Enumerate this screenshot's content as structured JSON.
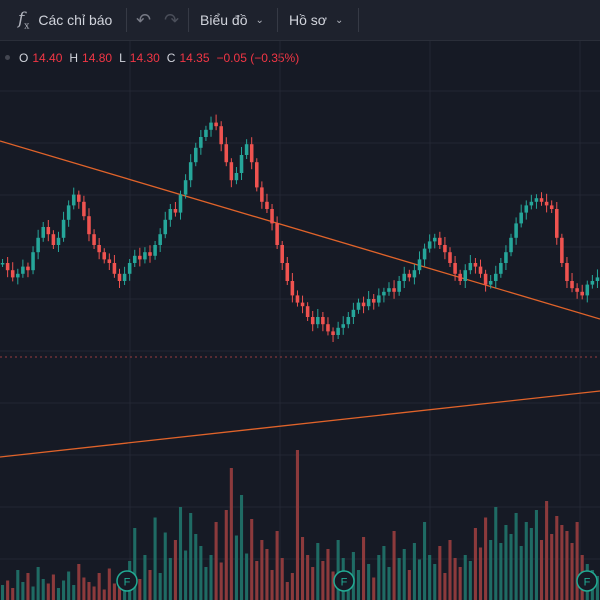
{
  "toolbar": {
    "indicators_label": "Các chỉ báo",
    "chart_menu_label": "Biểu đồ",
    "profile_menu_label": "Hồ sơ"
  },
  "ohlc": {
    "open_key": "O",
    "open": "14.40",
    "high_key": "H",
    "high": "14.80",
    "low_key": "L",
    "low": "14.30",
    "close_key": "C",
    "close": "14.35",
    "change": "−0.05 (−0.35%)"
  },
  "colors": {
    "background": "#161a25",
    "up": "#26a69a",
    "down": "#ef5350",
    "trendline": "#e0632a",
    "price_line": "#ef5350",
    "event_marker": "#22ab94"
  },
  "chart_data": {
    "type": "candlestick",
    "grid": true,
    "trendlines": 2,
    "price_line": "dashed",
    "event_marker_label": "F",
    "event_marker_count": 3,
    "series": [
      {
        "name": "price",
        "values": [
          0.55,
          0.53,
          0.51,
          0.52,
          0.54,
          0.53,
          0.58,
          0.62,
          0.65,
          0.63,
          0.6,
          0.62,
          0.67,
          0.71,
          0.74,
          0.72,
          0.68,
          0.63,
          0.6,
          0.58,
          0.56,
          0.55,
          0.52,
          0.5,
          0.52,
          0.55,
          0.57,
          0.56,
          0.58,
          0.57,
          0.6,
          0.63,
          0.67,
          0.7,
          0.69,
          0.74,
          0.78,
          0.83,
          0.87,
          0.9,
          0.92,
          0.94,
          0.93,
          0.88,
          0.83,
          0.78,
          0.8,
          0.85,
          0.88,
          0.83,
          0.76,
          0.72,
          0.7,
          0.66,
          0.6,
          0.55,
          0.5,
          0.46,
          0.44,
          0.43,
          0.4,
          0.38,
          0.4,
          0.38,
          0.36,
          0.35,
          0.37,
          0.38,
          0.4,
          0.42,
          0.44,
          0.43,
          0.45,
          0.44,
          0.46,
          0.47,
          0.48,
          0.47,
          0.5,
          0.52,
          0.51,
          0.53,
          0.56,
          0.59,
          0.61,
          0.62,
          0.6,
          0.58,
          0.55,
          0.52,
          0.5,
          0.53,
          0.55,
          0.54,
          0.52,
          0.49,
          0.5,
          0.52,
          0.55,
          0.58,
          0.62,
          0.66,
          0.69,
          0.71,
          0.72,
          0.73,
          0.72,
          0.71,
          0.7,
          0.62,
          0.55,
          0.5,
          0.48,
          0.47,
          0.46,
          0.49,
          0.5,
          0.51
        ]
      },
      {
        "name": "volume",
        "values": [
          0.1,
          0.13,
          0.08,
          0.2,
          0.12,
          0.18,
          0.09,
          0.22,
          0.14,
          0.11,
          0.17,
          0.08,
          0.13,
          0.19,
          0.1,
          0.24,
          0.15,
          0.12,
          0.09,
          0.18,
          0.07,
          0.21,
          0.11,
          0.16,
          0.13,
          0.26,
          0.48,
          0.14,
          0.3,
          0.2,
          0.55,
          0.18,
          0.45,
          0.28,
          0.4,
          0.62,
          0.33,
          0.58,
          0.44,
          0.36,
          0.22,
          0.3,
          0.52,
          0.25,
          0.6,
          0.88,
          0.43,
          0.7,
          0.31,
          0.54,
          0.26,
          0.4,
          0.34,
          0.2,
          0.46,
          0.28,
          0.12,
          0.18,
          1.0,
          0.42,
          0.3,
          0.22,
          0.38,
          0.26,
          0.34,
          0.19,
          0.4,
          0.28,
          0.16,
          0.32,
          0.2,
          0.42,
          0.24,
          0.15,
          0.3,
          0.36,
          0.22,
          0.46,
          0.28,
          0.34,
          0.2,
          0.38,
          0.27,
          0.52,
          0.3,
          0.24,
          0.36,
          0.18,
          0.4,
          0.28,
          0.22,
          0.3,
          0.26,
          0.48,
          0.35,
          0.55,
          0.4,
          0.62,
          0.38,
          0.5,
          0.44,
          0.58,
          0.36,
          0.52,
          0.48,
          0.6,
          0.4,
          0.66,
          0.44,
          0.56,
          0.5,
          0.46,
          0.38,
          0.52,
          0.3,
          0.24,
          0.2,
          0.16
        ]
      }
    ]
  }
}
